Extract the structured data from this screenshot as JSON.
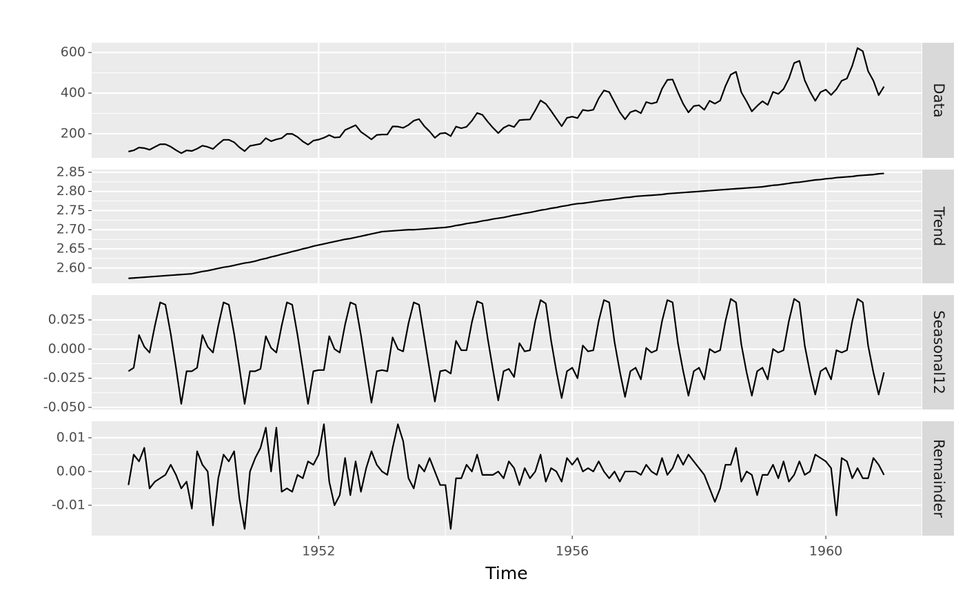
{
  "chart_data": {
    "type": "faceted-line",
    "x_label": "Time",
    "color": "#000000",
    "grid": true,
    "xlim": [
      1948.42,
      1961.51
    ],
    "xticks": [
      1952,
      1956,
      1960
    ],
    "x": [
      1949.0,
      1949.083,
      1949.167,
      1949.25,
      1949.333,
      1949.417,
      1949.5,
      1949.583,
      1949.667,
      1949.75,
      1949.833,
      1949.917,
      1950.0,
      1950.083,
      1950.167,
      1950.25,
      1950.333,
      1950.417,
      1950.5,
      1950.583,
      1950.667,
      1950.75,
      1950.833,
      1950.917,
      1951.0,
      1951.083,
      1951.167,
      1951.25,
      1951.333,
      1951.417,
      1951.5,
      1951.583,
      1951.667,
      1951.75,
      1951.833,
      1951.917,
      1952.0,
      1952.083,
      1952.167,
      1952.25,
      1952.333,
      1952.417,
      1952.5,
      1952.583,
      1952.667,
      1952.75,
      1952.833,
      1952.917,
      1953.0,
      1953.083,
      1953.167,
      1953.25,
      1953.333,
      1953.417,
      1953.5,
      1953.583,
      1953.667,
      1953.75,
      1953.833,
      1953.917,
      1954.0,
      1954.083,
      1954.167,
      1954.25,
      1954.333,
      1954.417,
      1954.5,
      1954.583,
      1954.667,
      1954.75,
      1954.833,
      1954.917,
      1955.0,
      1955.083,
      1955.167,
      1955.25,
      1955.333,
      1955.417,
      1955.5,
      1955.583,
      1955.667,
      1955.75,
      1955.833,
      1955.917,
      1956.0,
      1956.083,
      1956.167,
      1956.25,
      1956.333,
      1956.417,
      1956.5,
      1956.583,
      1956.667,
      1956.75,
      1956.833,
      1956.917,
      1957.0,
      1957.083,
      1957.167,
      1957.25,
      1957.333,
      1957.417,
      1957.5,
      1957.583,
      1957.667,
      1957.75,
      1957.833,
      1957.917,
      1958.0,
      1958.083,
      1958.167,
      1958.25,
      1958.333,
      1958.417,
      1958.5,
      1958.583,
      1958.667,
      1958.75,
      1958.833,
      1958.917,
      1959.0,
      1959.083,
      1959.167,
      1959.25,
      1959.333,
      1959.417,
      1959.5,
      1959.583,
      1959.667,
      1959.75,
      1959.833,
      1959.917,
      1960.0,
      1960.083,
      1960.167,
      1960.25,
      1960.333,
      1960.417,
      1960.5,
      1960.583,
      1960.667,
      1960.75,
      1960.833,
      1960.917
    ],
    "series": [
      {
        "name": "Data",
        "ylim": [
          81,
          648
        ],
        "yticks": [
          200,
          400,
          600
        ],
        "values": [
          112,
          118,
          132,
          129,
          121,
          135,
          148,
          148,
          136,
          119,
          104,
          118,
          115,
          126,
          141,
          135,
          125,
          149,
          170,
          170,
          158,
          133,
          114,
          140,
          145,
          150,
          178,
          163,
          172,
          178,
          199,
          199,
          184,
          162,
          146,
          166,
          171,
          180,
          193,
          181,
          183,
          218,
          230,
          242,
          209,
          191,
          172,
          194,
          196,
          196,
          236,
          235,
          229,
          243,
          264,
          272,
          237,
          211,
          180,
          201,
          204,
          188,
          235,
          227,
          234,
          264,
          302,
          293,
          259,
          229,
          203,
          229,
          242,
          233,
          267,
          269,
          270,
          315,
          364,
          347,
          312,
          274,
          237,
          278,
          284,
          277,
          317,
          313,
          318,
          374,
          413,
          405,
          355,
          306,
          271,
          306,
          315,
          301,
          356,
          348,
          355,
          422,
          465,
          467,
          404,
          347,
          305,
          336,
          340,
          318,
          362,
          348,
          363,
          435,
          491,
          505,
          404,
          359,
          310,
          337,
          360,
          342,
          406,
          396,
          420,
          472,
          548,
          559,
          463,
          407,
          362,
          405,
          417,
          391,
          419,
          461,
          472,
          535,
          622,
          606,
          508,
          461,
          390,
          432
        ]
      },
      {
        "name": "Trend",
        "ylim": [
          2.56,
          2.857
        ],
        "yticks": [
          {
            "value": 2.6,
            "label": "2.60"
          },
          2.65,
          {
            "value": 2.7,
            "label": "2.70"
          },
          2.75,
          {
            "value": 2.8,
            "label": "2.80"
          },
          2.85
        ],
        "values": [
          2.573,
          2.574,
          2.575,
          2.576,
          2.577,
          2.578,
          2.579,
          2.58,
          2.581,
          2.582,
          2.583,
          2.584,
          2.585,
          2.588,
          2.591,
          2.593,
          2.596,
          2.599,
          2.602,
          2.604,
          2.607,
          2.61,
          2.613,
          2.615,
          2.618,
          2.622,
          2.625,
          2.629,
          2.632,
          2.636,
          2.639,
          2.643,
          2.646,
          2.65,
          2.653,
          2.657,
          2.66,
          2.663,
          2.666,
          2.669,
          2.672,
          2.675,
          2.677,
          2.68,
          2.683,
          2.686,
          2.689,
          2.692,
          2.695,
          2.696,
          2.697,
          2.698,
          2.699,
          2.7,
          2.7,
          2.701,
          2.702,
          2.703,
          2.704,
          2.705,
          2.706,
          2.708,
          2.711,
          2.713,
          2.716,
          2.718,
          2.72,
          2.723,
          2.725,
          2.728,
          2.73,
          2.732,
          2.735,
          2.738,
          2.74,
          2.743,
          2.745,
          2.748,
          2.751,
          2.753,
          2.756,
          2.758,
          2.761,
          2.763,
          2.766,
          2.768,
          2.769,
          2.771,
          2.773,
          2.775,
          2.777,
          2.778,
          2.78,
          2.782,
          2.784,
          2.785,
          2.787,
          2.788,
          2.789,
          2.79,
          2.791,
          2.792,
          2.794,
          2.795,
          2.796,
          2.797,
          2.798,
          2.799,
          2.8,
          2.801,
          2.802,
          2.803,
          2.804,
          2.805,
          2.806,
          2.807,
          2.808,
          2.809,
          2.81,
          2.811,
          2.812,
          2.814,
          2.816,
          2.817,
          2.819,
          2.821,
          2.823,
          2.824,
          2.826,
          2.828,
          2.83,
          2.831,
          2.833,
          2.834,
          2.836,
          2.837,
          2.838,
          2.839,
          2.841,
          2.842,
          2.843,
          2.844,
          2.846,
          2.847
        ]
      },
      {
        "name": "Seasonal12",
        "ylim": [
          -0.0518,
          0.0463
        ],
        "yticks": [
          {
            "value": 0.025,
            "label": "0.025"
          },
          {
            "value": 0,
            "label": "0.000"
          },
          {
            "value": -0.025,
            "label": "-0.025"
          },
          {
            "value": -0.05,
            "label": "-0.050"
          }
        ],
        "values": [
          -0.019,
          -0.016,
          0.012,
          0.002,
          -0.003,
          0.02,
          0.04,
          0.038,
          0.013,
          -0.016,
          -0.047,
          -0.019,
          -0.019,
          -0.016,
          0.012,
          0.002,
          -0.003,
          0.02,
          0.04,
          0.038,
          0.013,
          -0.016,
          -0.047,
          -0.019,
          -0.019,
          -0.017,
          0.011,
          0.001,
          -0.003,
          0.02,
          0.04,
          0.038,
          0.012,
          -0.017,
          -0.047,
          -0.019,
          -0.018,
          -0.018,
          0.011,
          0.0,
          -0.003,
          0.021,
          0.04,
          0.038,
          0.012,
          -0.017,
          -0.046,
          -0.019,
          -0.018,
          -0.019,
          0.01,
          0.0,
          -0.002,
          0.022,
          0.04,
          0.038,
          0.01,
          -0.018,
          -0.045,
          -0.019,
          -0.018,
          -0.021,
          0.007,
          -0.001,
          -0.001,
          0.023,
          0.041,
          0.039,
          0.009,
          -0.018,
          -0.044,
          -0.019,
          -0.017,
          -0.024,
          0.005,
          -0.002,
          -0.001,
          0.024,
          0.042,
          0.039,
          0.007,
          -0.019,
          -0.042,
          -0.019,
          -0.016,
          -0.025,
          0.003,
          -0.002,
          -0.001,
          0.024,
          0.042,
          0.04,
          0.006,
          -0.019,
          -0.041,
          -0.019,
          -0.016,
          -0.026,
          0.001,
          -0.003,
          -0.001,
          0.024,
          0.042,
          0.04,
          0.005,
          -0.019,
          -0.04,
          -0.019,
          -0.016,
          -0.026,
          0.0,
          -0.003,
          -0.001,
          0.024,
          0.043,
          0.04,
          0.004,
          -0.02,
          -0.04,
          -0.019,
          -0.016,
          -0.026,
          0.0,
          -0.003,
          -0.001,
          0.024,
          0.043,
          0.04,
          0.003,
          -0.02,
          -0.039,
          -0.019,
          -0.016,
          -0.026,
          -0.001,
          -0.003,
          -0.001,
          0.024,
          0.043,
          0.04,
          0.003,
          -0.02,
          -0.039,
          -0.02
        ]
      },
      {
        "name": "Remainder",
        "ylim": [
          -0.019,
          0.0149
        ],
        "yticks": [
          0.01,
          {
            "value": 0,
            "label": "0.00"
          },
          -0.01
        ],
        "values": [
          -0.004,
          0.005,
          0.003,
          0.007,
          -0.005,
          -0.003,
          -0.002,
          -0.001,
          0.002,
          -0.001,
          -0.005,
          -0.003,
          -0.011,
          0.006,
          0.002,
          0.0,
          -0.016,
          -0.002,
          0.005,
          0.003,
          0.006,
          -0.008,
          -0.017,
          0.0,
          0.004,
          0.007,
          0.013,
          0.0,
          0.013,
          -0.006,
          -0.005,
          -0.006,
          -0.001,
          -0.002,
          0.003,
          0.002,
          0.005,
          0.014,
          -0.003,
          -0.01,
          -0.007,
          0.004,
          -0.007,
          0.003,
          -0.006,
          0.001,
          0.006,
          0.002,
          0.0,
          -0.001,
          0.007,
          0.014,
          0.009,
          -0.002,
          -0.005,
          0.002,
          0.0,
          0.004,
          0.0,
          -0.004,
          -0.004,
          -0.017,
          -0.002,
          -0.002,
          0.002,
          0.0,
          0.005,
          -0.001,
          -0.001,
          -0.001,
          0.0,
          -0.002,
          0.003,
          0.001,
          -0.004,
          0.001,
          -0.002,
          0.0,
          0.005,
          -0.003,
          0.001,
          0.0,
          -0.003,
          0.004,
          0.002,
          0.004,
          0.0,
          0.001,
          0.0,
          0.003,
          0.0,
          -0.002,
          0.0,
          -0.003,
          0.0,
          0.0,
          0.0,
          -0.001,
          0.002,
          0.0,
          -0.001,
          0.004,
          -0.001,
          0.001,
          0.005,
          0.002,
          0.005,
          0.003,
          0.001,
          -0.001,
          -0.005,
          -0.009,
          -0.005,
          0.002,
          0.002,
          0.007,
          -0.003,
          0.0,
          -0.001,
          -0.007,
          -0.001,
          -0.001,
          0.002,
          -0.002,
          0.003,
          -0.003,
          -0.001,
          0.003,
          -0.001,
          0.0,
          0.005,
          0.004,
          0.003,
          0.001,
          -0.013,
          0.004,
          0.003,
          -0.002,
          0.001,
          -0.002,
          -0.002,
          0.004,
          0.002,
          -0.001
        ]
      }
    ]
  }
}
